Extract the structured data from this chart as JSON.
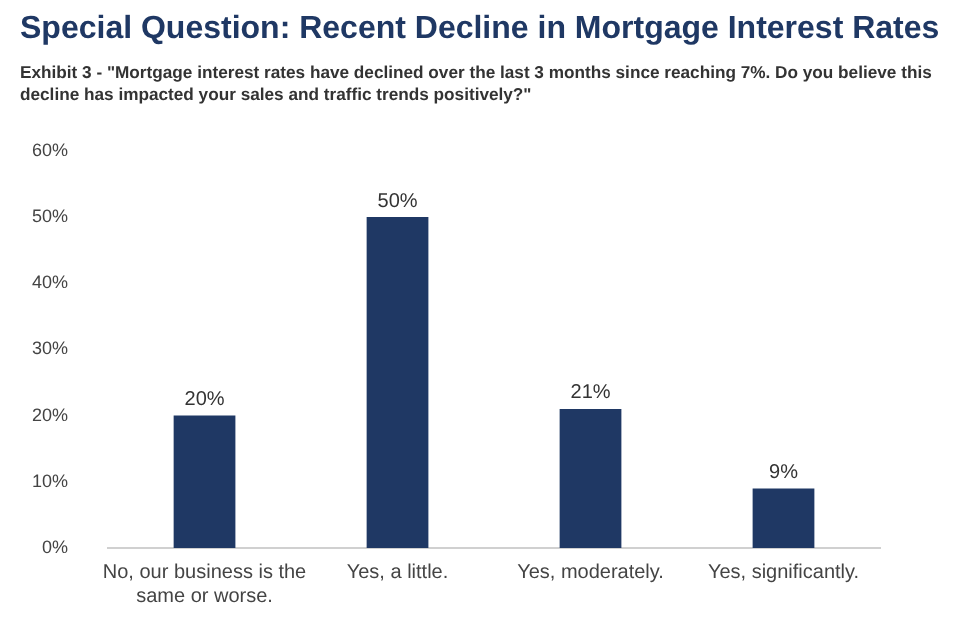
{
  "chart_data": {
    "type": "bar",
    "title": "Special Question: Recent Decline in Mortgage Interest Rates",
    "subtitle": "Exhibit 3 - \"Mortgage interest rates have declined over the last 3 months since reaching 7%. Do you believe this decline has impacted your sales and traffic trends positively?\"",
    "categories": [
      "No, our business is the same or worse.",
      "Yes, a little.",
      "Yes, moderately.",
      "Yes, significantly."
    ],
    "values": [
      20,
      50,
      21,
      9
    ],
    "value_labels": [
      "20%",
      "50%",
      "21%",
      "9%"
    ],
    "color": "#1f3864",
    "ylim": [
      0,
      60
    ],
    "yticks": [
      {
        "value": 0,
        "label": "0%"
      },
      {
        "value": 10,
        "label": "10%"
      },
      {
        "value": 20,
        "label": "20%"
      },
      {
        "value": 30,
        "label": "30%"
      },
      {
        "value": 40,
        "label": "40%"
      },
      {
        "value": 50,
        "label": "50%"
      },
      {
        "value": 60,
        "label": "60%"
      }
    ],
    "grid": false,
    "legend": false
  }
}
